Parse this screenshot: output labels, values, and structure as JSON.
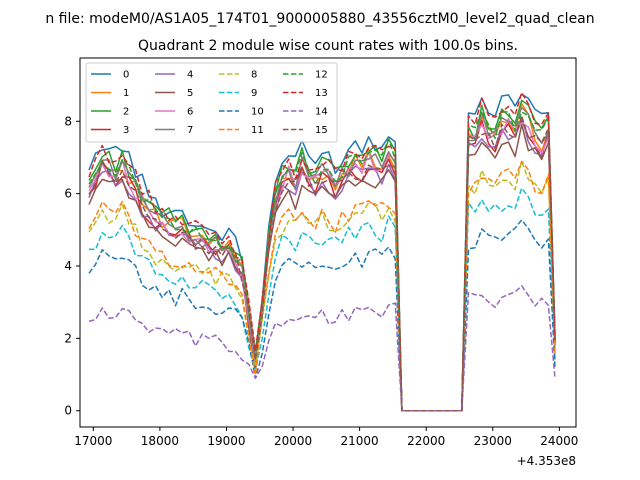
{
  "figure": {
    "suptitle": "n file: modeM0/AS1A05_174T01_9000005880_43556cztM0_level2_quad_clean",
    "title": "Quadrant 2 module wise count rates with 100.0s bins.",
    "x_offset_label": "+4.353e8"
  },
  "chart_data": {
    "type": "line",
    "title": "Quadrant 2 module wise count rates with 100.0s bins.",
    "xlabel": "",
    "ylabel": "",
    "x_offset": 435300000,
    "xlim": [
      16800,
      24250
    ],
    "ylim": [
      -0.45,
      9.75
    ],
    "x_ticks": [
      17000,
      18000,
      19000,
      20000,
      21000,
      22000,
      23000,
      24000
    ],
    "x_tick_labels": [
      "17000",
      "18000",
      "19000",
      "20000",
      "21000",
      "22000",
      "23000",
      "24000"
    ],
    "y_ticks": [
      0,
      2,
      4,
      6,
      8
    ],
    "y_tick_labels": [
      "0",
      "2",
      "4",
      "6",
      "8"
    ],
    "grid": false,
    "legend": {
      "placement": "top-left",
      "columns": 4
    },
    "x": [
      16935,
      17035,
      17135,
      17235,
      17335,
      17435,
      17535,
      17635,
      17735,
      17835,
      17935,
      18035,
      18135,
      18235,
      18335,
      18435,
      18535,
      18635,
      18735,
      18835,
      18935,
      19035,
      19135,
      19235,
      19335,
      19435,
      19535,
      19635,
      19735,
      19835,
      19935,
      20035,
      20135,
      20235,
      20335,
      20435,
      20535,
      20635,
      20735,
      20835,
      20935,
      21035,
      21135,
      21235,
      21335,
      21435,
      21535,
      21635,
      21735,
      21835,
      21935,
      22035,
      22135,
      22235,
      22335,
      22435,
      22535,
      22635,
      22735,
      22835,
      22935,
      23035,
      23135,
      23235,
      23335,
      23435,
      23535,
      23635,
      23735,
      23835,
      23935
    ],
    "active_segments": [
      [
        0,
        47
      ],
      [
        57,
        70
      ]
    ],
    "zero_segment": [
      47,
      57
    ],
    "series": [
      {
        "name": "0",
        "color": "#1f77b4",
        "dash": "solid",
        "mean": 7.0,
        "sag": 1.6
      },
      {
        "name": "1",
        "color": "#ff7f0e",
        "dash": "solid",
        "mean": 6.5,
        "sag": 1.6
      },
      {
        "name": "2",
        "color": "#2ca02c",
        "dash": "solid",
        "mean": 6.7,
        "sag": 1.6
      },
      {
        "name": "3",
        "color": "#d62728",
        "dash": "solid",
        "mean": 6.3,
        "sag": 1.5
      },
      {
        "name": "4",
        "color": "#9467bd",
        "dash": "solid",
        "mean": 6.2,
        "sag": 1.5
      },
      {
        "name": "5",
        "color": "#8c564b",
        "dash": "solid",
        "mean": 6.0,
        "sag": 1.4
      },
      {
        "name": "6",
        "color": "#e377c2",
        "dash": "solid",
        "mean": 6.4,
        "sag": 1.5
      },
      {
        "name": "7",
        "color": "#7f7f7f",
        "dash": "solid",
        "mean": 6.5,
        "sag": 1.5
      },
      {
        "name": "8",
        "color": "#bcbd22",
        "dash": "dashed",
        "mean": 5.2,
        "sag": 1.2
      },
      {
        "name": "9",
        "color": "#17becf",
        "dash": "dashed",
        "mean": 4.7,
        "sag": 1.1
      },
      {
        "name": "10",
        "color": "#1f77b4",
        "dash": "dashed",
        "mean": 4.0,
        "sag": 1.0
      },
      {
        "name": "11",
        "color": "#ff7f0e",
        "dash": "dashed",
        "mean": 5.3,
        "sag": 1.2
      },
      {
        "name": "12",
        "color": "#2ca02c",
        "dash": "dashed",
        "mean": 6.6,
        "sag": 1.5
      },
      {
        "name": "13",
        "color": "#d62728",
        "dash": "dashed",
        "mean": 6.8,
        "sag": 1.5
      },
      {
        "name": "14",
        "color": "#9467bd",
        "dash": "dashed",
        "mean": 2.6,
        "sag": 0.6
      },
      {
        "name": "15",
        "color": "#8c564b",
        "dash": "dashed",
        "mean": 6.3,
        "sag": 1.4
      }
    ],
    "shape_profile": [
      0.95,
      1.0,
      1.06,
      1.04,
      1.02,
      1.05,
      1.0,
      0.95,
      0.9,
      0.86,
      0.82,
      0.8,
      0.8,
      0.78,
      0.79,
      0.76,
      0.74,
      0.72,
      0.72,
      0.71,
      0.7,
      0.7,
      0.66,
      0.6,
      0.42,
      0.22,
      0.45,
      0.72,
      0.9,
      0.98,
      1.02,
      0.97,
      1.05,
      1.0,
      0.98,
      1.02,
      1.0,
      0.97,
      1.0,
      1.03,
      1.05,
      1.04,
      1.08,
      1.06,
      1.04,
      1.1,
      1.05,
      0.0,
      0.0,
      0.0,
      0.0,
      0.0,
      0.0,
      0.0,
      0.0,
      0.0,
      0.0,
      1.18,
      1.15,
      1.25,
      1.2,
      1.17,
      1.22,
      1.24,
      1.2,
      1.28,
      1.23,
      1.18,
      1.14,
      1.2,
      0.3
    ]
  }
}
